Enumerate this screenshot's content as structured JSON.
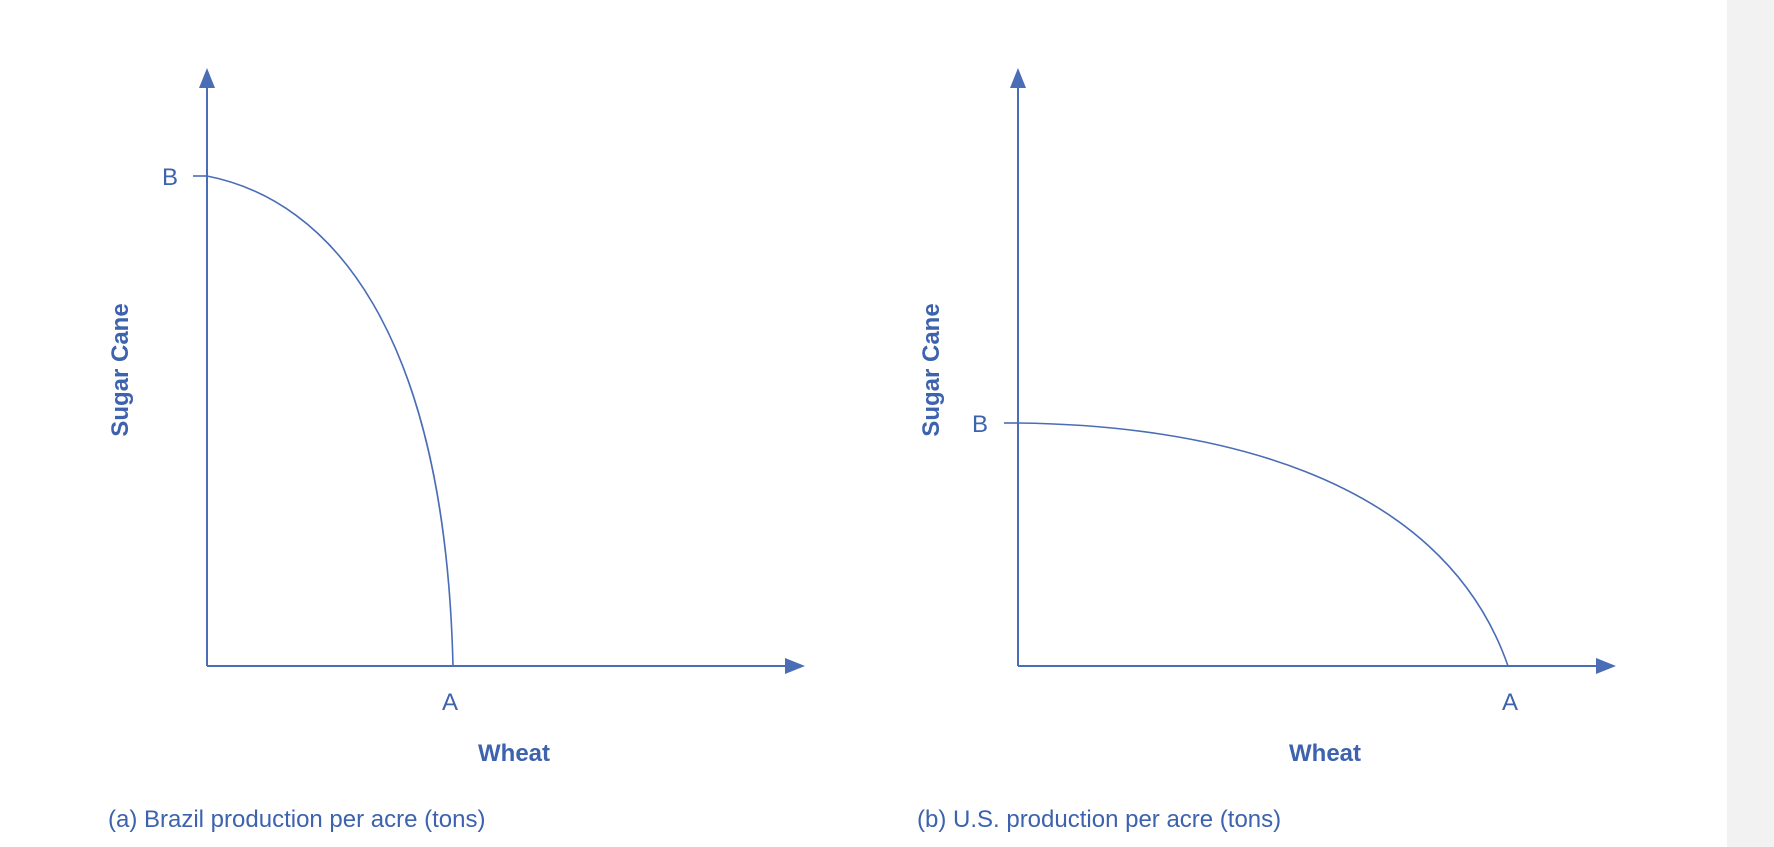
{
  "colors": {
    "ink": "#4a6db5",
    "sidebar": "#f2f2f2",
    "background": "#ffffff"
  },
  "panels": [
    {
      "caption": "(a) Brazil production per acre (tons)",
      "ylabel": "Sugar Cane",
      "xlabel": "Wheat",
      "point_b": "B",
      "point_a": "A",
      "curve": "concave",
      "b_relative_height": 0.86,
      "a_relative_width": 0.41
    },
    {
      "caption": "(b) U.S. production per acre (tons)",
      "ylabel": "Sugar Cane",
      "xlabel": "Wheat",
      "point_b": "B",
      "point_a": "A",
      "curve": "concave",
      "b_relative_height": 0.42,
      "a_relative_width": 0.83
    }
  ]
}
